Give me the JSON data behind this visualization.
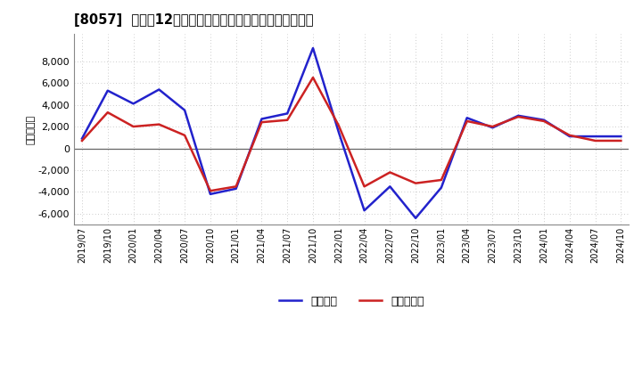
{
  "title": "[8057]  利益の12か月移動合計の対前年同期増減額の推移",
  "ylabel": "（百万円）",
  "background_color": "#ffffff",
  "grid_color": "#bbbbbb",
  "x_labels": [
    "2019/07",
    "2019/10",
    "2020/01",
    "2020/04",
    "2020/07",
    "2020/10",
    "2021/01",
    "2021/04",
    "2021/07",
    "2021/10",
    "2022/01",
    "2022/04",
    "2022/07",
    "2022/10",
    "2023/01",
    "2023/04",
    "2023/07",
    "2023/10",
    "2024/01",
    "2024/04",
    "2024/07",
    "2024/10"
  ],
  "keijo_rieki": [
    900,
    5300,
    4100,
    5400,
    3500,
    -4200,
    -3700,
    2700,
    3200,
    9200,
    1500,
    -5700,
    -3500,
    -6400,
    -3600,
    2800,
    1900,
    3000,
    2600,
    1100,
    1100,
    1100
  ],
  "toki_junrieki": [
    700,
    3300,
    2000,
    2200,
    1200,
    -3900,
    -3500,
    2400,
    2600,
    6500,
    2100,
    -3500,
    -2200,
    -3200,
    -2900,
    2500,
    2000,
    2900,
    2500,
    1200,
    700,
    700
  ],
  "keijo_color": "#2222cc",
  "toki_color": "#cc2222",
  "ylim": [
    -7000,
    10500
  ],
  "yticks": [
    -6000,
    -4000,
    -2000,
    0,
    2000,
    4000,
    6000,
    8000
  ],
  "legend_keijo": "経常利益",
  "legend_toki": "当期純利益",
  "linewidth": 1.8
}
